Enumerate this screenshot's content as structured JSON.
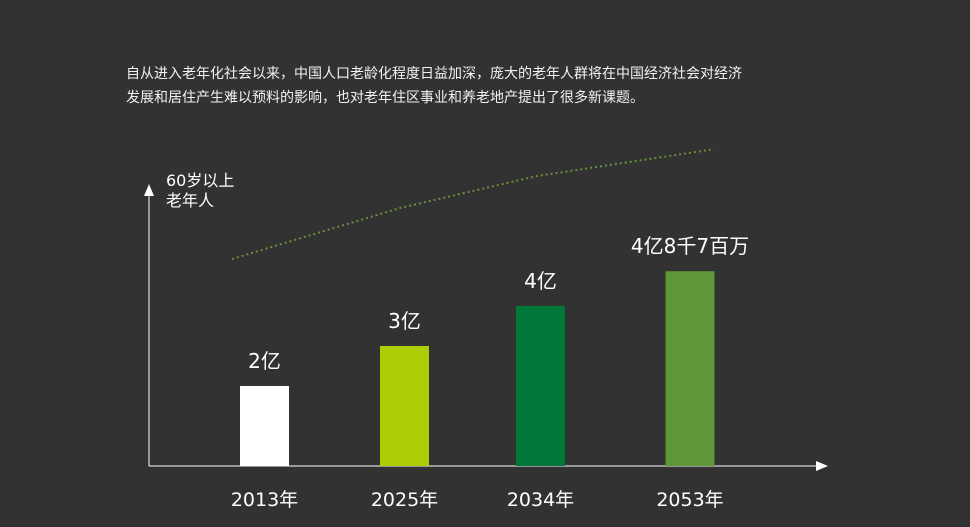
{
  "intro": {
    "line1": "自从进入老年化社会以来，中国人口老龄化程度日益加深，庞大的老年人群将在中国经济社会对经济",
    "line2": "发展和居住产生难以预料的影响，也对老年住区事业和养老地产提出了很多新课题。"
  },
  "chart_data": {
    "type": "bar",
    "ylabel": [
      "60岁以上",
      "老年人"
    ],
    "categories": [
      "2013年",
      "2025年",
      "2034年",
      "2053年"
    ],
    "values": [
      2,
      3,
      4,
      4.87
    ],
    "value_labels": [
      "2亿",
      "3亿",
      "4亿",
      "4亿8千7百万"
    ],
    "ylim": [
      0,
      7
    ],
    "grid": false,
    "legend": "none",
    "trend_line": true,
    "colors": [
      "#ffffff",
      "#afcd05",
      "#00783a",
      "#5e9638"
    ],
    "axis_color": "#ffffff",
    "trend_color": "#6a8f3c"
  }
}
